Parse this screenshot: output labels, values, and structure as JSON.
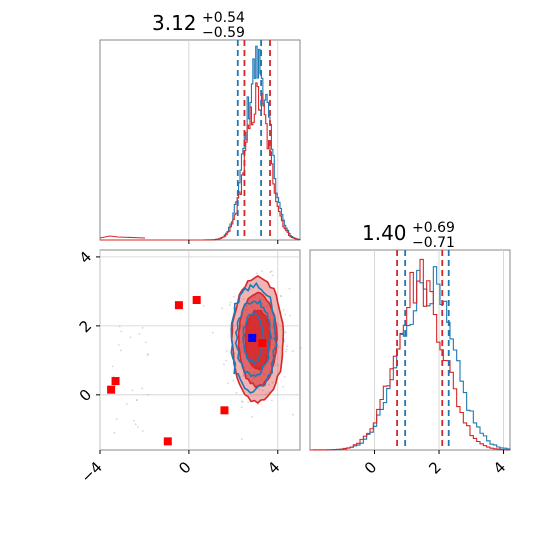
{
  "chart_data": [
    {
      "type": "histogram",
      "panel": "top-left",
      "title": {
        "value": "3.12",
        "upper": "+0.54",
        "lower": "−0.59"
      },
      "xlim": [
        -4,
        5
      ],
      "grid": true,
      "series": [
        {
          "color": "#1f77b4",
          "x_center": 3.1,
          "x_sigma": 0.55,
          "peak": 1.0
        },
        {
          "color": "#d62728",
          "x_center": 3.1,
          "x_sigma": 0.55,
          "peak": 0.8
        }
      ],
      "quantile_lines": [
        {
          "color": "#1f77b4",
          "x": 2.2
        },
        {
          "color": "#1f77b4",
          "x": 3.25
        },
        {
          "color": "#d62728",
          "x": 2.5
        },
        {
          "color": "#d62728",
          "x": 3.65
        }
      ]
    },
    {
      "type": "contour",
      "panel": "bottom-left",
      "xlim": [
        -4,
        5
      ],
      "ylim": [
        -1.6,
        4.2
      ],
      "grid": true,
      "x_ticks": [
        "−4",
        "0",
        "4"
      ],
      "y_ticks": [
        "0",
        "2",
        "4"
      ],
      "x_tick_values": [
        -4,
        0,
        4
      ],
      "y_tick_values": [
        0,
        2,
        4
      ],
      "contours": {
        "red": {
          "color": "#d62728",
          "center": [
            3.1,
            1.6
          ],
          "levels": [
            [
              0.55,
              0.85
            ],
            [
              0.85,
              1.35
            ],
            [
              1.15,
              1.8
            ]
          ]
        },
        "blue": {
          "color": "#1f77b4",
          "center": [
            2.9,
            1.65
          ],
          "levels": [
            [
              0.45,
              0.7
            ],
            [
              0.75,
              1.1
            ],
            [
              1.0,
              1.55
            ]
          ]
        }
      },
      "markers_red": [
        {
          "x": -0.45,
          "y": 2.6
        },
        {
          "x": 0.35,
          "y": 2.75
        },
        {
          "x": -3.3,
          "y": 0.4
        },
        {
          "x": -3.5,
          "y": 0.15
        },
        {
          "x": 1.6,
          "y": -0.45
        },
        {
          "x": -0.95,
          "y": -1.35
        },
        {
          "x": 3.3,
          "y": 1.5
        }
      ],
      "markers_blue": [
        {
          "x": 2.85,
          "y": 1.65
        }
      ]
    },
    {
      "type": "histogram",
      "panel": "bottom-right",
      "title": {
        "value": "1.40",
        "upper": "+0.69",
        "lower": "−0.71"
      },
      "xlim": [
        -2,
        4.2
      ],
      "grid": true,
      "x_ticks": [
        "0",
        "2",
        "4"
      ],
      "x_tick_values": [
        0,
        2,
        4
      ],
      "series": [
        {
          "color": "#1f77b4",
          "x_center": 1.6,
          "x_sigma": 0.8,
          "peak": 1.0
        },
        {
          "color": "#d62728",
          "x_center": 1.4,
          "x_sigma": 0.75,
          "peak": 1.0
        }
      ],
      "quantile_lines": [
        {
          "color": "#1f77b4",
          "x": 0.95
        },
        {
          "color": "#1f77b4",
          "x": 2.3
        },
        {
          "color": "#d62728",
          "x": 0.7
        },
        {
          "color": "#d62728",
          "x": 2.1
        }
      ]
    }
  ]
}
